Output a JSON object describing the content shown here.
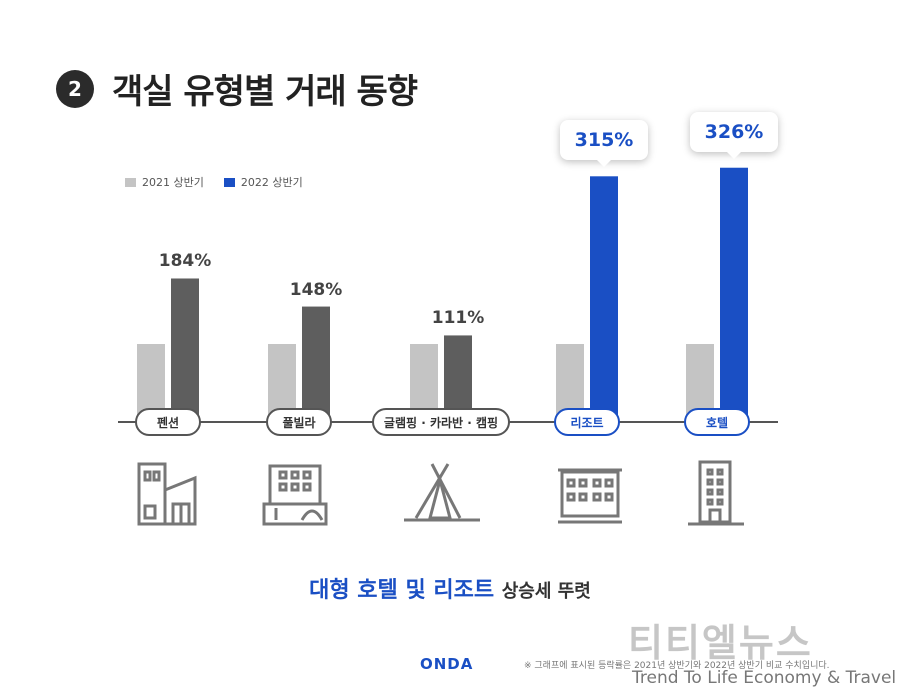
{
  "header": {
    "number": "2",
    "title": "객실 유형별 거래 동향"
  },
  "colors": {
    "series_2021": "#c4c4c4",
    "series_2022_normal": "#5e5e5e",
    "series_2022_highlight": "#1a4fc4"
  },
  "chart_data": {
    "type": "bar",
    "categories": [
      "펜션",
      "풀빌라",
      "글램핑 · 카라반 · 캠핑",
      "리조트",
      "호텔"
    ],
    "series": [
      {
        "name": "2021 상반기",
        "values": [
          100,
          100,
          100,
          100,
          100
        ]
      },
      {
        "name": "2022 상반기",
        "values": [
          184,
          148,
          111,
          315,
          326
        ]
      }
    ],
    "data_labels": [
      "184%",
      "148%",
      "111%",
      "315%",
      "326%"
    ],
    "highlighted_categories": [
      3,
      4
    ],
    "legend": [
      "2021 상반기",
      "2022 상반기"
    ],
    "legend_position": "top-left",
    "ylim": [
      0,
      340
    ],
    "grid": false
  },
  "summary": {
    "highlight": "대형 호텔 및 리조트",
    "rest": "상승세 뚜렷"
  },
  "footer": {
    "logo": "ONDA",
    "note": "※ 그래프에 표시된 등락률은 2021년 상반기와 2022년 상반기 비교 수치입니다."
  },
  "watermark": {
    "line1": "티티엘뉴스",
    "line2": "Trend To Life Economy & Travel"
  }
}
